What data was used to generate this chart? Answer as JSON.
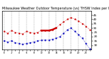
{
  "title": "Milwaukee Weather Outdoor Temperature (vs) THSW Index per Hour (Last 24 Hours)",
  "title_fontsize": 3.5,
  "background_color": "#ffffff",
  "plot_background": "#ffffff",
  "temp_color": "#cc0000",
  "thsw_color": "#0000bb",
  "grid_color": "#888888",
  "hours": [
    0,
    1,
    2,
    3,
    4,
    5,
    6,
    7,
    8,
    9,
    10,
    11,
    12,
    13,
    14,
    15,
    16,
    17,
    18,
    19,
    20,
    21,
    22,
    23
  ],
  "temp_values": [
    26,
    24,
    27,
    25,
    24,
    23,
    26,
    25,
    24,
    25,
    27,
    27,
    27,
    28,
    30,
    34,
    37,
    40,
    42,
    40,
    38,
    35,
    32,
    28
  ],
  "thsw_values": [
    15,
    14,
    15,
    13,
    12,
    11,
    12,
    13,
    14,
    15,
    16,
    16,
    16,
    17,
    18,
    20,
    24,
    28,
    30,
    26,
    22,
    18,
    12,
    6
  ],
  "solid_red_x": [
    10,
    11,
    12,
    13,
    14
  ],
  "solid_red_y": [
    27,
    27,
    27,
    28,
    30
  ],
  "ylim": [
    5,
    50
  ],
  "yticks": [
    10,
    15,
    20,
    25,
    30,
    35,
    40,
    45
  ],
  "ytick_labels": [
    "10",
    "15",
    "20",
    "25",
    "30",
    "35",
    "40",
    "45"
  ],
  "ytick_fontsize": 3.2,
  "xtick_fontsize": 2.5,
  "marker_size": 1.5,
  "dot_linewidth": 0.5,
  "solid_linewidth": 1.8,
  "figsize": [
    1.6,
    0.87
  ],
  "dpi": 100,
  "grid_every": 2
}
